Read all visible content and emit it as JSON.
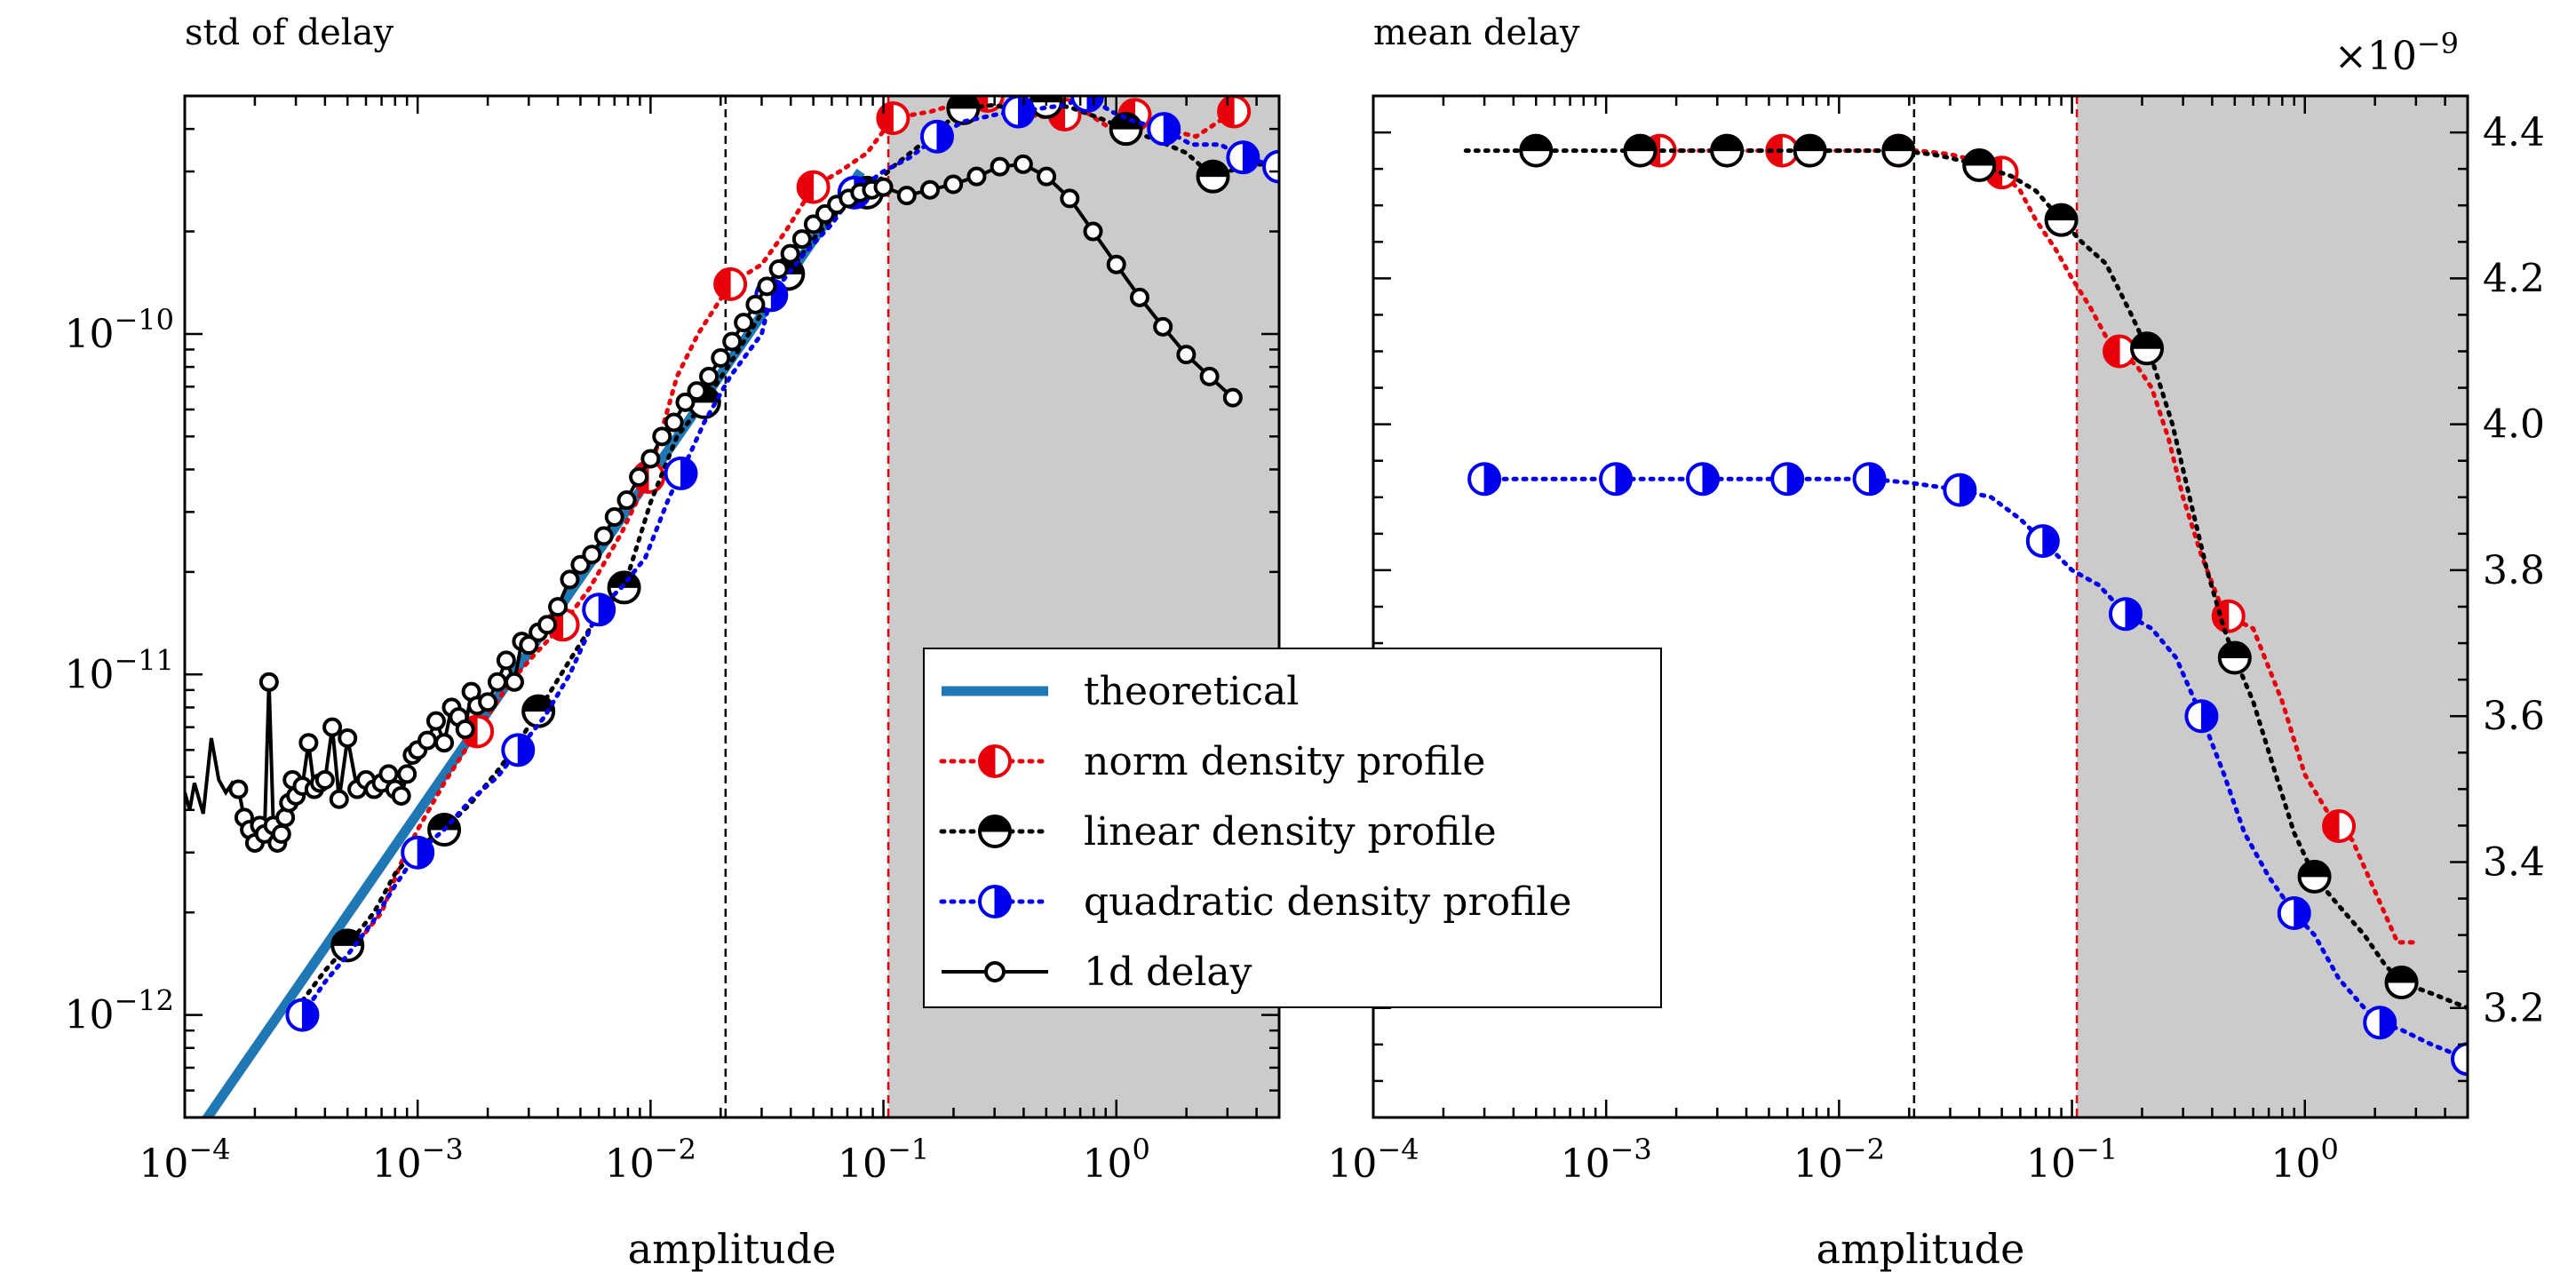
{
  "chart_data": [
    {
      "type": "line",
      "title": "std of delay",
      "xlabel": "amplitude",
      "ylabel": "",
      "xscale": "log",
      "yscale": "log",
      "xlim": [
        0.0001,
        5
      ],
      "ylim": [
        5e-13,
        5e-10
      ],
      "xticks": [
        {
          "value": 0.0001,
          "base": "10",
          "exp": "−4"
        },
        {
          "value": 0.001,
          "base": "10",
          "exp": "−3"
        },
        {
          "value": 0.01,
          "base": "10",
          "exp": "−2"
        },
        {
          "value": 0.1,
          "base": "10",
          "exp": "−1"
        },
        {
          "value": 1,
          "base": "10",
          "exp": "0"
        }
      ],
      "yticks": [
        {
          "value": 1e-12,
          "base": "10",
          "exp": "−12"
        },
        {
          "value": 1e-11,
          "base": "10",
          "exp": "−11"
        },
        {
          "value": 1e-10,
          "base": "10",
          "exp": "−10"
        }
      ],
      "vlines": [
        {
          "x": 0.021,
          "color": "#000000"
        },
        {
          "x": 0.105,
          "color": "#e8000b"
        }
      ],
      "shaded_from": 0.105,
      "series": [
        {
          "name": "theoretical",
          "kind": "theory",
          "color": "#1f77b4",
          "x": [
            0.0001,
            0.08
          ],
          "y": [
            4e-13,
            3e-10
          ]
        },
        {
          "name": "norm density profile",
          "kind": "marker",
          "fill": "left",
          "color": "#e8000b",
          "x": [
            0.0005,
            0.0007,
            0.00085,
            0.001,
            0.0013,
            0.0018,
            0.0025,
            0.0032,
            0.0042,
            0.0055,
            0.0075,
            0.0098,
            0.013,
            0.016,
            0.022,
            0.03,
            0.038,
            0.05,
            0.065,
            0.085,
            0.11,
            0.16,
            0.22,
            0.28,
            0.34,
            0.42,
            0.55,
            0.7,
            0.9,
            1.2,
            1.6,
            2.2,
            3.2
          ],
          "y": [
            1.5e-12,
            2e-12,
            2.8e-12,
            3.5e-12,
            4.8e-12,
            6.8e-12,
            9.5e-12,
            1.15e-11,
            1.4e-11,
            1.8e-11,
            2.6e-11,
            3.8e-11,
            7.5e-11,
            1e-10,
            1.4e-10,
            1.6e-10,
            2e-10,
            2.7e-10,
            3e-10,
            3.4e-10,
            4.3e-10,
            4.5e-10,
            4.8e-10,
            5e-10,
            4.7e-10,
            4.4e-10,
            4.3e-10,
            4.6e-10,
            4.1e-10,
            4.4e-10,
            4e-10,
            3.8e-10,
            4.5e-10
          ],
          "markers_at": [
            0.0018,
            0.0042,
            0.0098,
            0.022,
            0.05,
            0.11,
            0.28,
            0.6,
            1.2,
            3.2
          ]
        },
        {
          "name": "linear density profile",
          "kind": "marker",
          "fill": "top",
          "color": "#000000",
          "x": [
            0.00032,
            0.0004,
            0.0005,
            0.00065,
            0.0008,
            0.001,
            0.0013,
            0.0017,
            0.0022,
            0.0027,
            0.0033,
            0.0045,
            0.006,
            0.0077,
            0.01,
            0.013,
            0.017,
            0.022,
            0.03,
            0.039,
            0.05,
            0.065,
            0.085,
            0.11,
            0.16,
            0.22,
            0.3,
            0.4,
            0.5,
            0.65,
            0.85,
            1.1,
            1.5,
            2.0,
            2.6,
            3.5,
            5.0
          ],
          "y": [
            1.1e-12,
            1.35e-12,
            1.6e-12,
            2e-12,
            2.6e-12,
            3.1e-12,
            3.5e-12,
            4.2e-12,
            5.2e-12,
            6.3e-12,
            7.8e-12,
            1.1e-11,
            1.5e-11,
            1.8e-11,
            3.2e-11,
            5e-11,
            6.3e-11,
            8.2e-11,
            1.15e-10,
            1.5e-10,
            1.9e-10,
            2.3e-10,
            2.6e-10,
            3.1e-10,
            3.8e-10,
            4.6e-10,
            4.7e-10,
            4.5e-10,
            4.8e-10,
            4.6e-10,
            4.3e-10,
            4e-10,
            3.7e-10,
            3.4e-10,
            2.9e-10,
            3.1e-10,
            3.2e-10
          ],
          "markers_at": [
            0.0005,
            0.0013,
            0.0033,
            0.0077,
            0.017,
            0.039,
            0.085,
            0.22,
            0.5,
            1.1,
            2.6
          ]
        },
        {
          "name": "quadratic density profile",
          "kind": "marker",
          "fill": "right",
          "color": "#0000ee",
          "x": [
            0.00032,
            0.0004,
            0.0005,
            0.00065,
            0.0008,
            0.001,
            0.0013,
            0.0017,
            0.0022,
            0.0027,
            0.0035,
            0.0045,
            0.006,
            0.0075,
            0.0095,
            0.012,
            0.014,
            0.017,
            0.022,
            0.03,
            0.033,
            0.045,
            0.06,
            0.075,
            0.1,
            0.13,
            0.17,
            0.22,
            0.3,
            0.38,
            0.48,
            0.6,
            0.75,
            0.95,
            1.2,
            1.6,
            2.1,
            2.8,
            3.5,
            5.0
          ],
          "y": [
            1e-12,
            1.25e-12,
            1.5e-12,
            1.9e-12,
            2.4e-12,
            3e-12,
            3.5e-12,
            4.3e-12,
            5e-12,
            6e-12,
            7.5e-12,
            1e-11,
            1.55e-11,
            1.8e-11,
            2.2e-11,
            3.3e-11,
            4.1e-11,
            5.5e-11,
            7.5e-11,
            1e-10,
            1.3e-10,
            1.7e-10,
            2.1e-10,
            2.6e-10,
            3e-10,
            3.3e-10,
            3.8e-10,
            4.2e-10,
            4.4e-10,
            4.5e-10,
            4.6e-10,
            4.7e-10,
            5e-10,
            4.5e-10,
            4.2e-10,
            4e-10,
            3.6e-10,
            3.6e-10,
            3.3e-10,
            3.1e-10
          ],
          "markers_at": [
            0.00032,
            0.001,
            0.0027,
            0.006,
            0.0135,
            0.033,
            0.075,
            0.17,
            0.38,
            0.75,
            1.6,
            3.5,
            5.0
          ]
        },
        {
          "name": "1d delay",
          "kind": "line",
          "color": "#000000",
          "x": [
            0.0001,
            0.000105,
            0.00011,
            0.00012,
            0.00013,
            0.00014,
            0.00015,
            0.00016,
            0.00017,
            0.00018,
            0.00019,
            0.0002,
            0.00021,
            0.00022,
            0.00023,
            0.00024,
            0.00025,
            0.00026,
            0.00027,
            0.00028,
            0.00029,
            0.0003,
            0.00032,
            0.00034,
            0.00036,
            0.00038,
            0.0004,
            0.00043,
            0.00046,
            0.0005,
            0.00055,
            0.0006,
            0.00065,
            0.0007,
            0.00075,
            0.0008,
            0.00085,
            0.0009,
            0.00095,
            0.001,
            0.0011,
            0.0012,
            0.0013,
            0.0014,
            0.0015,
            0.0016,
            0.0017,
            0.0018,
            0.002,
            0.0022,
            0.0024,
            0.0026,
            0.0028,
            0.003,
            0.0033,
            0.0036,
            0.004,
            0.0045,
            0.005,
            0.0056,
            0.0063,
            0.007,
            0.0079,
            0.0089,
            0.01,
            0.0112,
            0.0126,
            0.0141,
            0.0158,
            0.0178,
            0.02,
            0.0224,
            0.0251,
            0.0282,
            0.0316,
            0.0355,
            0.0398,
            0.0447,
            0.0501,
            0.0562,
            0.0631,
            0.0708,
            0.0794,
            0.0891,
            0.1,
            0.1259,
            0.1585,
            0.1995,
            0.2512,
            0.3162,
            0.3981,
            0.5012,
            0.631,
            0.7943,
            1.0,
            1.2589,
            1.5849,
            1.9953,
            2.5119,
            3.1623
          ],
          "y": [
            4.5e-12,
            4e-12,
            4.8e-12,
            3.9e-12,
            6.5e-12,
            4.9e-12,
            4.5e-12,
            4.8e-12,
            4.6e-12,
            3.8e-12,
            3.5e-12,
            3.2e-12,
            3.6e-12,
            3.4e-12,
            9.5e-12,
            3.6e-12,
            3.2e-12,
            3.4e-12,
            3.8e-12,
            4.2e-12,
            4.9e-12,
            4.4e-12,
            4.7e-12,
            6.3e-12,
            4.6e-12,
            4.8e-12,
            4.9e-12,
            7e-12,
            4.3e-12,
            6.5e-12,
            4.6e-12,
            4.9e-12,
            4.6e-12,
            4.8e-12,
            5.1e-12,
            4.6e-12,
            4.4e-12,
            5.1e-12,
            5.8e-12,
            6e-12,
            6.4e-12,
            7.3e-12,
            6.3e-12,
            8e-12,
            7.5e-12,
            6.9e-12,
            8.9e-12,
            8.1e-12,
            8.3e-12,
            9.5e-12,
            1.1e-11,
            9.5e-12,
            1.25e-11,
            1.22e-11,
            1.33e-11,
            1.4e-11,
            1.58e-11,
            1.9e-11,
            2.1e-11,
            2.25e-11,
            2.55e-11,
            2.9e-11,
            3.25e-11,
            3.8e-11,
            4.3e-11,
            5e-11,
            5.5e-11,
            6.3e-11,
            6.8e-11,
            7.5e-11,
            8.5e-11,
            9.5e-11,
            1.08e-10,
            1.22e-10,
            1.38e-10,
            1.55e-10,
            1.72e-10,
            1.9e-10,
            2.1e-10,
            2.25e-10,
            2.4e-10,
            2.5e-10,
            2.6e-10,
            2.65e-10,
            2.7e-10,
            2.55e-10,
            2.65e-10,
            2.75e-10,
            2.9e-10,
            3.1e-10,
            3.15e-10,
            2.9e-10,
            2.5e-10,
            2e-10,
            1.6e-10,
            1.28e-10,
            1.05e-10,
            8.7e-11,
            7.5e-11,
            6.5e-11
          ],
          "markers_at": "all_from_0.00017"
        }
      ],
      "legend": {
        "placement": "center",
        "entries": [
          "theoretical",
          "norm density profile",
          "linear density profile",
          "quadratic density profile",
          "1d delay"
        ]
      }
    },
    {
      "type": "line",
      "title": "mean delay",
      "xlabel": "amplitude",
      "ylabel": "",
      "xscale": "log",
      "yscale": "linear",
      "y_multiplier": "×10^−9",
      "y_multiplier_base": "×10",
      "y_multiplier_exp": "−9",
      "xlim": [
        0.0001,
        5
      ],
      "ylim": [
        3.05,
        4.45
      ],
      "xticks": [
        {
          "value": 0.0001,
          "base": "10",
          "exp": "−4"
        },
        {
          "value": 0.001,
          "base": "10",
          "exp": "−3"
        },
        {
          "value": 0.01,
          "base": "10",
          "exp": "−2"
        },
        {
          "value": 0.1,
          "base": "10",
          "exp": "−1"
        },
        {
          "value": 1,
          "base": "10",
          "exp": "0"
        }
      ],
      "yticks": [
        {
          "value": 3.2,
          "label": "3.2"
        },
        {
          "value": 3.4,
          "label": "3.4"
        },
        {
          "value": 3.6,
          "label": "3.6"
        },
        {
          "value": 3.8,
          "label": "3.8"
        },
        {
          "value": 4.0,
          "label": "4.0"
        },
        {
          "value": 4.2,
          "label": "4.2"
        },
        {
          "value": 4.4,
          "label": "4.4"
        }
      ],
      "vlines": [
        {
          "x": 0.021,
          "color": "#000000"
        },
        {
          "x": 0.105,
          "color": "#e8000b"
        }
      ],
      "shaded_from": 0.105,
      "series": [
        {
          "name": "norm density profile",
          "kind": "marker",
          "fill": "left",
          "color": "#e8000b",
          "x": [
            0.0017,
            0.0025,
            0.0035,
            0.005,
            0.0065,
            0.009,
            0.012,
            0.016,
            0.022,
            0.03,
            0.04,
            0.05,
            0.06,
            0.07,
            0.085,
            0.1,
            0.12,
            0.14,
            0.16,
            0.19,
            0.22,
            0.26,
            0.3,
            0.36,
            0.45,
            0.6,
            0.8,
            1.0,
            1.3,
            1.6,
            2.0,
            2.5,
            3.0
          ],
          "y": [
            4.375,
            4.375,
            4.375,
            4.375,
            4.375,
            4.375,
            4.375,
            4.375,
            4.375,
            4.37,
            4.36,
            4.345,
            4.32,
            4.28,
            4.24,
            4.2,
            4.16,
            4.12,
            4.1,
            4.08,
            4.05,
            3.98,
            3.9,
            3.82,
            3.74,
            3.72,
            3.62,
            3.52,
            3.46,
            3.43,
            3.36,
            3.29,
            3.29
          ],
          "markers_at": [
            0.0017,
            0.0057,
            0.018,
            0.05,
            0.16,
            0.47,
            1.4
          ]
        },
        {
          "name": "linear density profile",
          "kind": "marker",
          "fill": "top",
          "color": "#000000",
          "x": [
            0.00025,
            0.0003,
            0.0005,
            0.0007,
            0.001,
            0.0014,
            0.002,
            0.0033,
            0.005,
            0.0075,
            0.01,
            0.015,
            0.018,
            0.025,
            0.03,
            0.04,
            0.055,
            0.07,
            0.09,
            0.11,
            0.14,
            0.18,
            0.22,
            0.27,
            0.32,
            0.38,
            0.45,
            0.5,
            0.6,
            0.75,
            0.9,
            1.1,
            1.4,
            1.8,
            2.2,
            2.6,
            3.5,
            5.0
          ],
          "y": [
            4.375,
            4.375,
            4.375,
            4.375,
            4.375,
            4.375,
            4.375,
            4.375,
            4.375,
            4.375,
            4.375,
            4.375,
            4.375,
            4.37,
            4.365,
            4.355,
            4.34,
            4.32,
            4.28,
            4.25,
            4.22,
            4.15,
            4.09,
            4.0,
            3.9,
            3.8,
            3.72,
            3.68,
            3.62,
            3.52,
            3.44,
            3.38,
            3.34,
            3.3,
            3.26,
            3.235,
            3.22,
            3.2
          ],
          "markers_at": [
            0.0005,
            0.0014,
            0.0033,
            0.0075,
            0.018,
            0.04,
            0.09,
            0.21,
            0.5,
            1.1,
            2.6
          ]
        },
        {
          "name": "quadratic density profile",
          "kind": "marker",
          "fill": "right",
          "color": "#0000ee",
          "x": [
            0.0003,
            0.0005,
            0.0008,
            0.0011,
            0.0015,
            0.0026,
            0.004,
            0.006,
            0.009,
            0.0135,
            0.02,
            0.033,
            0.045,
            0.06,
            0.075,
            0.1,
            0.13,
            0.17,
            0.22,
            0.28,
            0.36,
            0.45,
            0.55,
            0.7,
            0.9,
            1.1,
            1.4,
            1.8,
            2.1,
            2.6,
            3.5,
            5.0
          ],
          "y": [
            3.925,
            3.925,
            3.925,
            3.925,
            3.925,
            3.925,
            3.925,
            3.925,
            3.925,
            3.925,
            3.92,
            3.91,
            3.9,
            3.87,
            3.84,
            3.8,
            3.78,
            3.74,
            3.72,
            3.68,
            3.6,
            3.52,
            3.44,
            3.38,
            3.33,
            3.3,
            3.24,
            3.2,
            3.18,
            3.17,
            3.15,
            3.13
          ],
          "markers_at": [
            0.0003,
            0.0011,
            0.0026,
            0.006,
            0.0135,
            0.033,
            0.075,
            0.17,
            0.36,
            0.9,
            2.1,
            5.0
          ]
        }
      ]
    }
  ]
}
